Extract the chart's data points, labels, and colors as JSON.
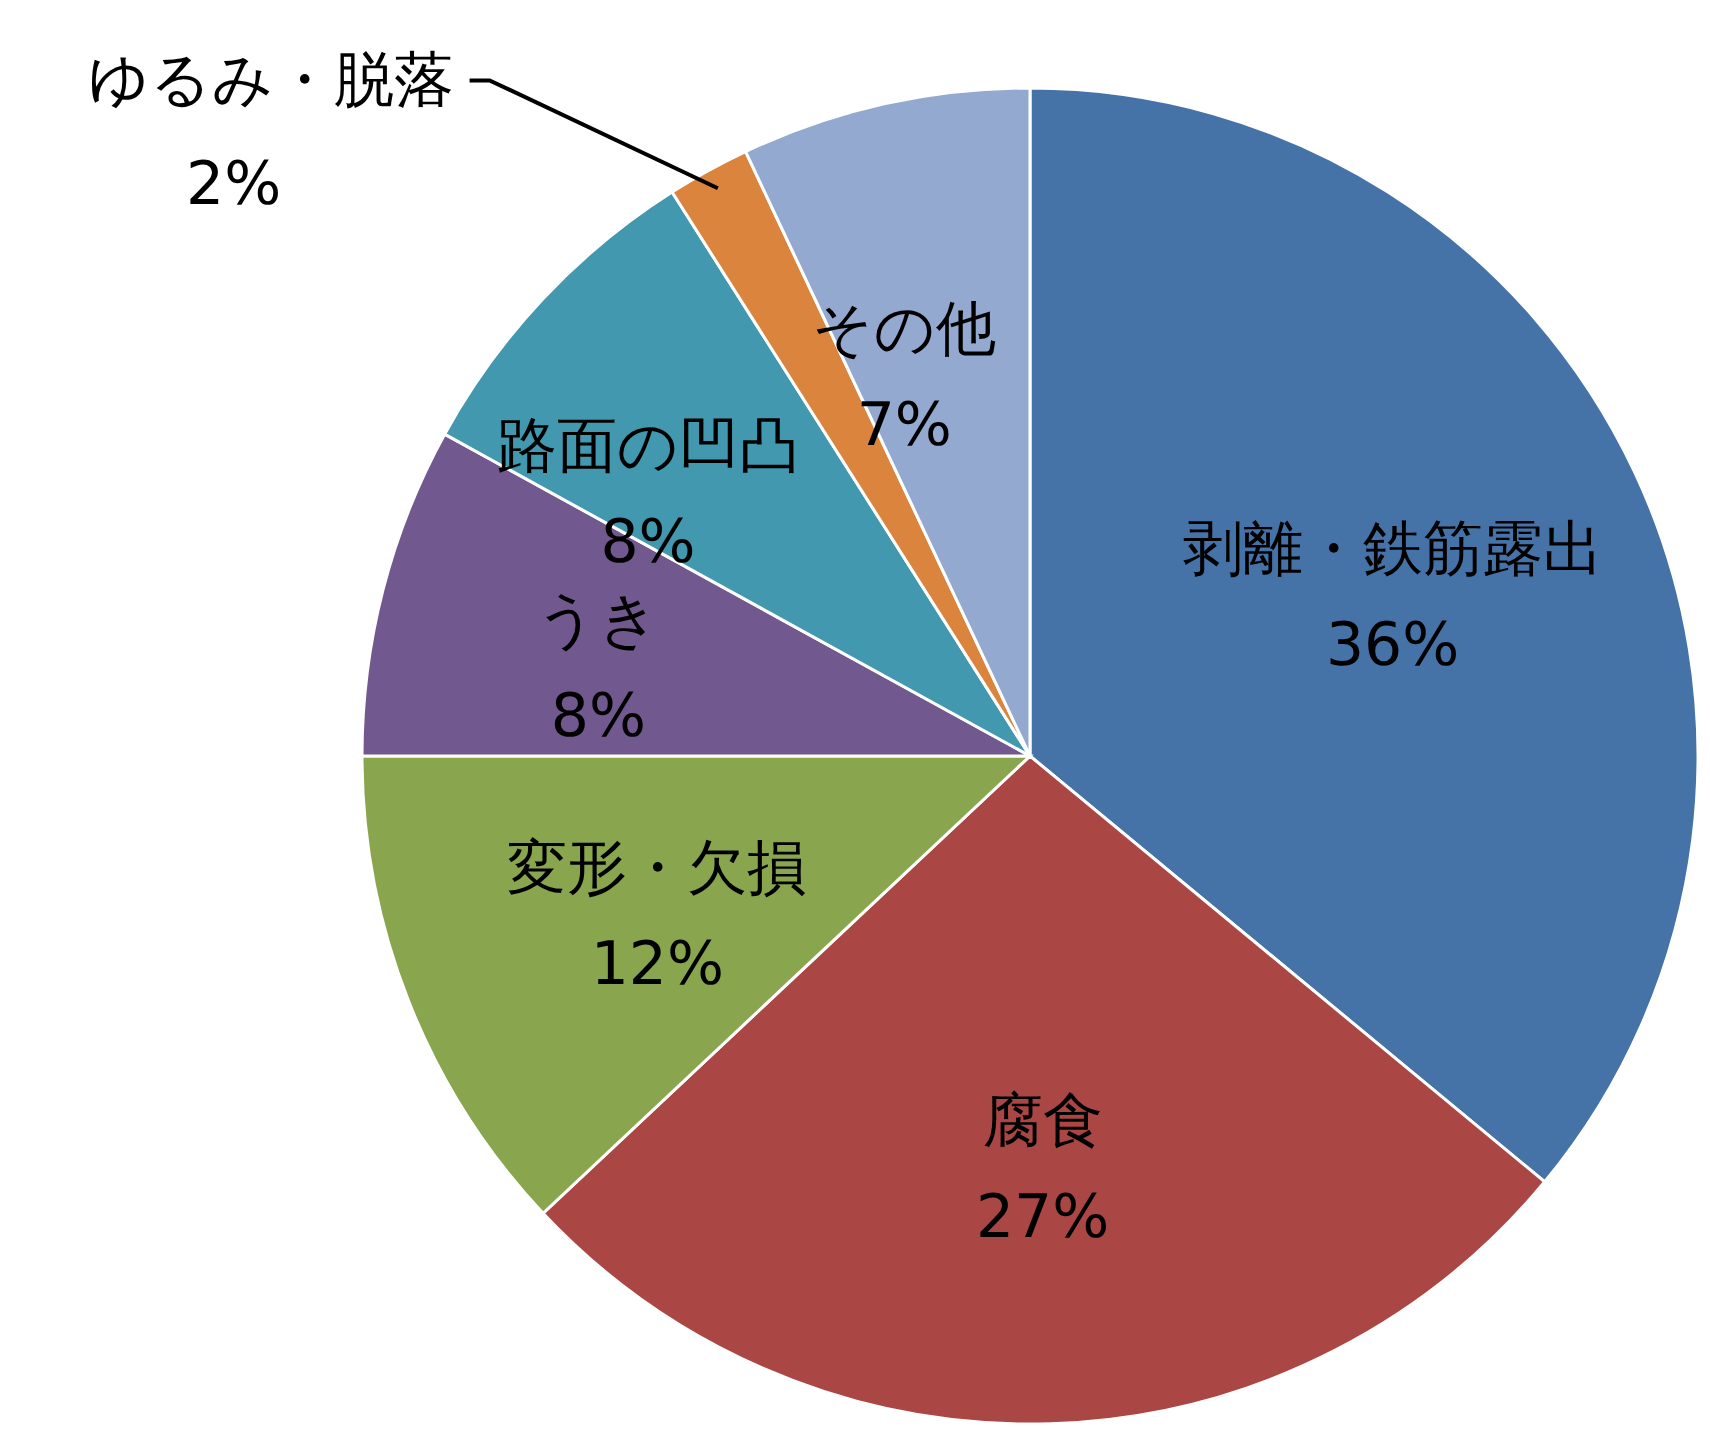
{
  "chart_data": {
    "type": "pie",
    "categories": [
      "剥離・鉄筋露出",
      "腐食",
      "変形・欠損",
      "うき",
      "路面の凹凸",
      "ゆるみ・脱落",
      "その他"
    ],
    "values": [
      36,
      27,
      12,
      8,
      8,
      2,
      7
    ],
    "value_labels": [
      "36%",
      "27%",
      "12%",
      "8%",
      "8%",
      "2%",
      "7%"
    ],
    "colors": [
      "#4572a7",
      "#aa4643",
      "#89a54e",
      "#71588f",
      "#4198af",
      "#db843d",
      "#93a9cf"
    ]
  }
}
